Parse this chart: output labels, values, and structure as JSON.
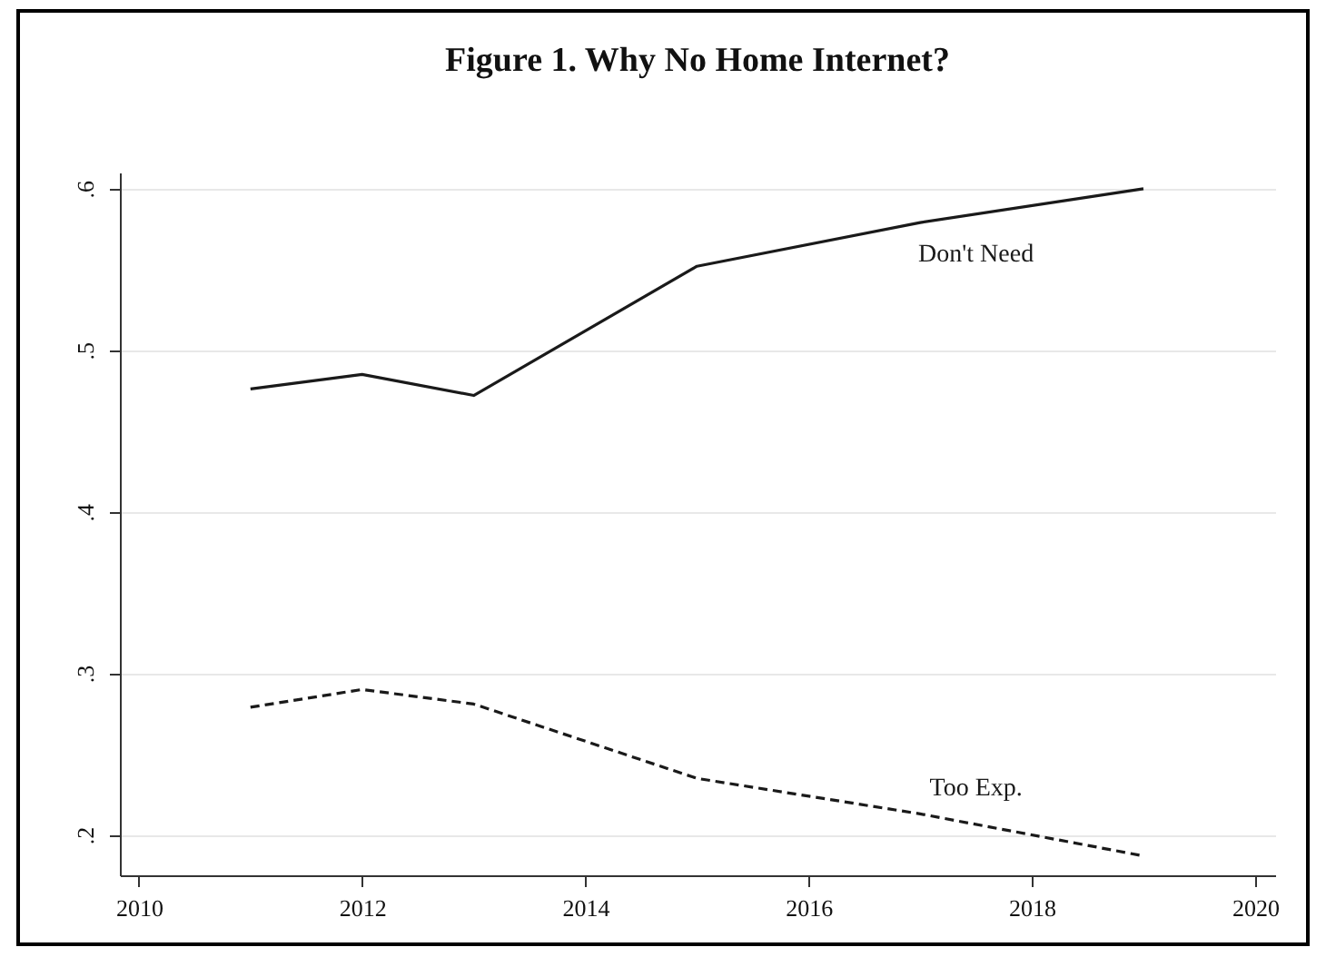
{
  "chart_data": {
    "type": "line",
    "title": "Figure 1.  Why No Home Internet?",
    "series": [
      {
        "name": "Don't Need",
        "color": "#1a1a1a",
        "line_style": "solid",
        "x": [
          2011,
          2012,
          2013,
          2015,
          2017,
          2019
        ],
        "values": [
          0.476,
          0.485,
          0.472,
          0.552,
          0.579,
          0.6
        ]
      },
      {
        "name": "Too Exp.",
        "color": "#1a1a1a",
        "line_style": "dashed",
        "x": [
          2011,
          2012,
          2013,
          2015,
          2017,
          2019
        ],
        "values": [
          0.279,
          0.29,
          0.281,
          0.235,
          0.213,
          0.187
        ]
      }
    ],
    "xlim": [
      2009.83,
      2020.18
    ],
    "xticks": [
      2010,
      2012,
      2014,
      2016,
      2018,
      2020
    ],
    "ylim": [
      0.175,
      0.61
    ],
    "yticks": [
      {
        "value": 0.2,
        "label": ".2"
      },
      {
        "value": 0.3,
        "label": ".3"
      },
      {
        "value": 0.4,
        "label": ".4"
      },
      {
        "value": 0.5,
        "label": ".5"
      },
      {
        "value": 0.6,
        "label": ".6"
      }
    ],
    "grid": "y",
    "marker": "none"
  }
}
